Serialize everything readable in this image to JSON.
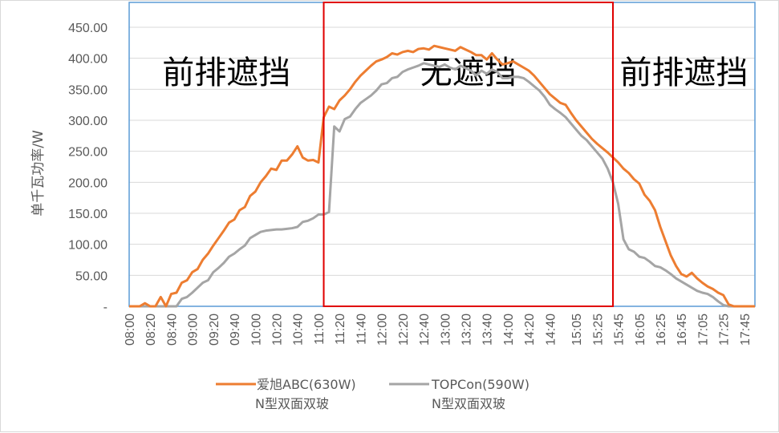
{
  "chart_data": {
    "type": "line",
    "title": "",
    "ylabel": "单千瓦功率/W",
    "xlabel": "",
    "ylim": [
      0,
      450
    ],
    "yticks": [
      0,
      50,
      100,
      150,
      200,
      250,
      300,
      350,
      400,
      450
    ],
    "ytick_labels": [
      "-",
      "50.00",
      "100.00",
      "150.00",
      "200.00",
      "250.00",
      "300.00",
      "350.00",
      "400.00",
      "450.00"
    ],
    "xtick_labels": [
      "08:00",
      "08:20",
      "08:40",
      "09:00",
      "09:20",
      "09:40",
      "10:00",
      "10:20",
      "10:40",
      "11:00",
      "11:20",
      "11:40",
      "12:00",
      "12:20",
      "12:40",
      "13:00",
      "13:20",
      "13:40",
      "14:00",
      "14:20",
      "14:40",
      "15:05",
      "15:25",
      "15:45",
      "16:05",
      "16:25",
      "16:45",
      "17:05",
      "17:25",
      "17:45"
    ],
    "x": [
      "08:00",
      "08:05",
      "08:10",
      "08:15",
      "08:20",
      "08:25",
      "08:30",
      "08:35",
      "08:40",
      "08:45",
      "08:50",
      "08:55",
      "09:00",
      "09:05",
      "09:10",
      "09:15",
      "09:20",
      "09:25",
      "09:30",
      "09:35",
      "09:40",
      "09:45",
      "09:50",
      "09:55",
      "10:00",
      "10:05",
      "10:10",
      "10:15",
      "10:20",
      "10:25",
      "10:30",
      "10:35",
      "10:40",
      "10:45",
      "10:50",
      "10:55",
      "11:00",
      "11:05",
      "11:10",
      "11:15",
      "11:20",
      "11:25",
      "11:30",
      "11:35",
      "11:40",
      "11:45",
      "11:50",
      "11:55",
      "12:00",
      "12:05",
      "12:10",
      "12:15",
      "12:20",
      "12:25",
      "12:30",
      "12:35",
      "12:40",
      "12:45",
      "12:50",
      "12:55",
      "13:00",
      "13:05",
      "13:10",
      "13:15",
      "13:20",
      "13:25",
      "13:30",
      "13:35",
      "13:40",
      "13:45",
      "13:50",
      "13:55",
      "14:00",
      "14:05",
      "14:10",
      "14:15",
      "14:20",
      "14:25",
      "14:30",
      "14:35",
      "14:40",
      "14:45",
      "14:50",
      "14:55",
      "15:00",
      "15:05",
      "15:10",
      "15:15",
      "15:20",
      "15:25",
      "15:30",
      "15:35",
      "15:40",
      "15:45",
      "15:50",
      "15:55",
      "16:00",
      "16:05",
      "16:10",
      "16:15",
      "16:20",
      "16:25",
      "16:30",
      "16:35",
      "16:40",
      "16:45",
      "16:50",
      "16:55",
      "17:00",
      "17:05",
      "17:10",
      "17:15",
      "17:20",
      "17:25",
      "17:30",
      "17:35",
      "17:40",
      "17:45",
      "17:50",
      "17:55"
    ],
    "series": [
      {
        "name": "爱旭ABC(630W)",
        "legend_line2": "N型双面双玻",
        "color": "#ED7D31",
        "values": [
          0,
          0,
          0,
          5,
          0,
          0,
          15,
          0,
          20,
          22,
          38,
          42,
          55,
          60,
          75,
          85,
          98,
          110,
          122,
          135,
          140,
          155,
          160,
          178,
          185,
          200,
          210,
          222,
          220,
          235,
          235,
          245,
          258,
          240,
          235,
          236,
          232,
          305,
          322,
          318,
          332,
          340,
          350,
          362,
          372,
          380,
          388,
          395,
          398,
          402,
          408,
          406,
          410,
          412,
          410,
          415,
          416,
          414,
          420,
          418,
          416,
          414,
          412,
          418,
          414,
          410,
          405,
          405,
          398,
          408,
          398,
          390,
          392,
          395,
          390,
          385,
          380,
          372,
          362,
          352,
          342,
          335,
          328,
          325,
          312,
          300,
          290,
          280,
          270,
          262,
          255,
          248,
          240,
          232,
          222,
          215,
          205,
          198,
          180,
          170,
          155,
          128,
          105,
          82,
          65,
          52,
          48,
          54,
          45,
          38,
          32,
          28,
          22,
          18,
          3,
          0,
          0,
          0,
          0,
          0
        ]
      },
      {
        "name": "TOPCon(590W)",
        "legend_line2": "N型双面双玻",
        "color": "#A5A5A5",
        "values": [
          0,
          0,
          0,
          0,
          0,
          0,
          0,
          0,
          0,
          0,
          12,
          15,
          22,
          30,
          38,
          42,
          55,
          62,
          70,
          80,
          85,
          92,
          98,
          110,
          115,
          120,
          122,
          123,
          124,
          124,
          125,
          126,
          128,
          136,
          138,
          142,
          148,
          148,
          152,
          290,
          282,
          302,
          306,
          318,
          328,
          334,
          340,
          348,
          358,
          360,
          368,
          370,
          378,
          382,
          385,
          388,
          392,
          390,
          388,
          386,
          390,
          385,
          382,
          388,
          384,
          380,
          372,
          380,
          375,
          382,
          378,
          368,
          368,
          370,
          370,
          368,
          362,
          355,
          348,
          338,
          325,
          318,
          312,
          305,
          295,
          285,
          275,
          268,
          258,
          248,
          238,
          222,
          200,
          165,
          108,
          92,
          88,
          80,
          78,
          72,
          65,
          63,
          58,
          52,
          45,
          40,
          35,
          30,
          25,
          22,
          20,
          15,
          8,
          2,
          0,
          0,
          0,
          0,
          0,
          0
        ]
      }
    ],
    "regions": [
      {
        "label": "前排遮挡",
        "from": "08:00",
        "to": "11:05",
        "border_color": "#5B9BD5"
      },
      {
        "label": "无遮挡",
        "from": "11:05",
        "to": "15:40",
        "border_color": "#E00000"
      },
      {
        "label": "前排遮挡",
        "from": "15:40",
        "to": "17:55",
        "border_color": "#5B9BD5"
      }
    ],
    "legend_position": "bottom",
    "grid": true
  }
}
